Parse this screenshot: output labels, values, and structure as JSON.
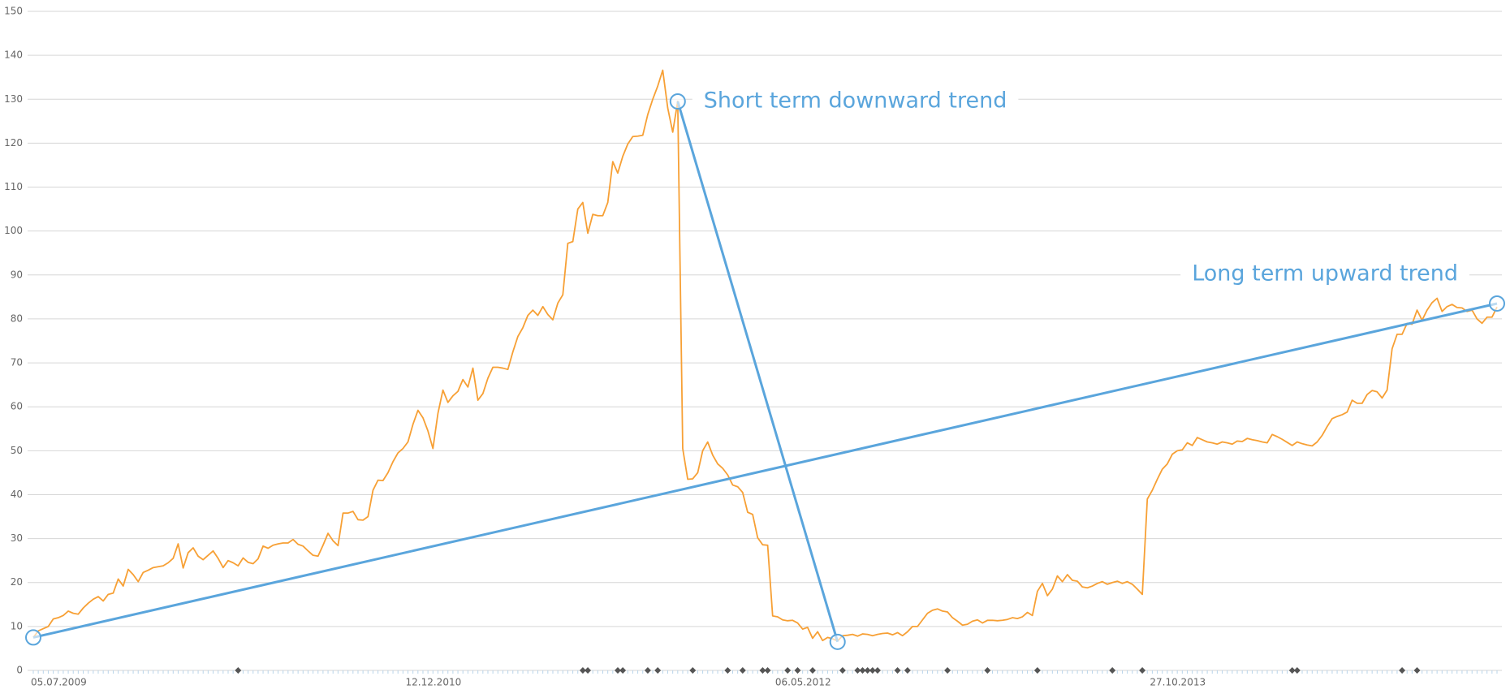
{
  "chart_data": {
    "type": "line",
    "categories": [
      "05.07.2009",
      null,
      null,
      null,
      null,
      null,
      null,
      null,
      null,
      null,
      null,
      null,
      null,
      null,
      null,
      null,
      null,
      null,
      null,
      null,
      null,
      null,
      null,
      null,
      null,
      null,
      null,
      null,
      null,
      null,
      null,
      null,
      null,
      null,
      null,
      null,
      null,
      null,
      null,
      null,
      null,
      null,
      null,
      null,
      null,
      null,
      null,
      null,
      null,
      null,
      null,
      null,
      null,
      null,
      null,
      null,
      null,
      null,
      null,
      null,
      null,
      null,
      null,
      null,
      null,
      null,
      null,
      null,
      null,
      null,
      null,
      null,
      null,
      null,
      null,
      "12.12.2010",
      null,
      null,
      null,
      null,
      null,
      null,
      null,
      null,
      null,
      null,
      null,
      null,
      null,
      null,
      null,
      null,
      null,
      null,
      null,
      null,
      null,
      null,
      null,
      null,
      null,
      null,
      null,
      null,
      null,
      null,
      null,
      null,
      null,
      null,
      null,
      null,
      null,
      null,
      null,
      null,
      null,
      null,
      null,
      null,
      null,
      null,
      null,
      null,
      null,
      null,
      null,
      null,
      null,
      null,
      null,
      null,
      null,
      null,
      null,
      null,
      null,
      null,
      null,
      null,
      null,
      null,
      null,
      null,
      null,
      null,
      null,
      null,
      null,
      "06.05.2012",
      null,
      null,
      null,
      null,
      null,
      null,
      null,
      null,
      null,
      null,
      null,
      null,
      null,
      null,
      null,
      null,
      null,
      null,
      null,
      null,
      null,
      null,
      null,
      null,
      null,
      null,
      null,
      null,
      null,
      null,
      null,
      null,
      null,
      null,
      null,
      null,
      null,
      null,
      null,
      null,
      null,
      null,
      null,
      null,
      null,
      null,
      null,
      null,
      null,
      null,
      null,
      null,
      null,
      null,
      null,
      null,
      null,
      null,
      null,
      null,
      null,
      null,
      null,
      null,
      null,
      null,
      null,
      null,
      null,
      null,
      null,
      null,
      null,
      null,
      "27.10.2013",
      null,
      null,
      null,
      null,
      null,
      null,
      null,
      null,
      null,
      null,
      null,
      null,
      null,
      null,
      null,
      null,
      null,
      null,
      null,
      null,
      null,
      null,
      null,
      null,
      null,
      null,
      null,
      null,
      null,
      null,
      null,
      null,
      null,
      null,
      null,
      null,
      null,
      null,
      null,
      null,
      null,
      null,
      null,
      null,
      null,
      null,
      null,
      null,
      null,
      null,
      null,
      null,
      null,
      null,
      null,
      null,
      null,
      null,
      null,
      null,
      null,
      null,
      null,
      null,
      null,
      null,
      null,
      null,
      null
    ],
    "series": [
      {
        "color": "#f7a035",
        "values": [
          7.5,
          9,
          9.5,
          10,
          11.7,
          12,
          12.5,
          13.5,
          13,
          12.8,
          14.2,
          15.3,
          16.2,
          16.8,
          15.8,
          17.3,
          17.6,
          20.8,
          19.2,
          23,
          21.8,
          20.2,
          22.3,
          22.8,
          23.4,
          23.6,
          23.8,
          24.5,
          25.5,
          28.8,
          23.3,
          26.8,
          27.9,
          26,
          25.2,
          26.2,
          27.2,
          25.5,
          23.4,
          25,
          24.5,
          23.8,
          25.6,
          24.6,
          24.3,
          25.4,
          28.3,
          27.8,
          28.5,
          28.8,
          29,
          29,
          29.8,
          28.7,
          28.3,
          27.2,
          26.2,
          26,
          28.5,
          31.2,
          29.5,
          28.4,
          35.8,
          35.8,
          36.2,
          34.3,
          34.2,
          35,
          41,
          43.3,
          43.2,
          45,
          47.5,
          49.5,
          50.5,
          52,
          56,
          59.2,
          57.5,
          54.5,
          50.5,
          58.5,
          63.8,
          61,
          62.5,
          63.5,
          66.2,
          64.5,
          68.8,
          61.5,
          63,
          66.5,
          69,
          69,
          68.8,
          68.5,
          72.5,
          76,
          78,
          80.8,
          82,
          80.8,
          82.8,
          81,
          79.8,
          83.6,
          85.5,
          97.2,
          97.6,
          105,
          106.5,
          99.5,
          103.8,
          103.5,
          103.5,
          106.5,
          115.8,
          113.2,
          117,
          119.8,
          121.5,
          121.6,
          121.8,
          126.5,
          130,
          133,
          136.6,
          128,
          122.5,
          129.5,
          50.5,
          43.5,
          43.6,
          45,
          50,
          52,
          49,
          47,
          46,
          44.5,
          42.2,
          41.8,
          40.5,
          36,
          35.5,
          30.2,
          28.6,
          28.5,
          12.4,
          12.2,
          11.5,
          11.3,
          11.4,
          10.8,
          9.4,
          9.8,
          7.3,
          8.8,
          6.8,
          7.5,
          7.2,
          6.7,
          7.9,
          8,
          8.2,
          7.8,
          8.3,
          8.2,
          7.9,
          8.2,
          8.4,
          8.5,
          8.1,
          8.6,
          7.9,
          8.8,
          10,
          10,
          11.5,
          13,
          13.7,
          14,
          13.5,
          13.3,
          12,
          11.2,
          10.3,
          10.5,
          11.2,
          11.5,
          10.8,
          11.4,
          11.4,
          11.3,
          11.4,
          11.6,
          12,
          11.8,
          12.2,
          13.2,
          12.5,
          18,
          19.8,
          17,
          18.5,
          21.5,
          20.2,
          21.8,
          20.5,
          20.3,
          19,
          18.8,
          19.2,
          19.8,
          20.2,
          19.6,
          20,
          20.3,
          19.8,
          20.2,
          19.6,
          18.5,
          17.3,
          39,
          41,
          43.5,
          45.8,
          47,
          49.2,
          50,
          50.2,
          51.8,
          51.2,
          53,
          52.5,
          52,
          51.8,
          51.5,
          52,
          51.8,
          51.5,
          52.2,
          52.1,
          52.8,
          52.5,
          52.3,
          52,
          51.8,
          53.7,
          53.2,
          52.6,
          51.9,
          51.2,
          52,
          51.6,
          51.3,
          51.1,
          52,
          53.5,
          55.5,
          57.3,
          57.8,
          58.2,
          58.8,
          61.5,
          60.8,
          60.8,
          62.8,
          63.7,
          63.4,
          62,
          63.8,
          73.2,
          76.5,
          76.5,
          79,
          78.8,
          82,
          79.7,
          82,
          83.7,
          84.7,
          81.7,
          82.8,
          83.3,
          82.6,
          82.5,
          81.7,
          82,
          80,
          79,
          80.4,
          80.4,
          82.7
        ]
      }
    ],
    "ylim": [
      0,
      150
    ],
    "yticks": [
      0,
      10,
      20,
      30,
      40,
      50,
      60,
      70,
      80,
      90,
      100,
      110,
      120,
      130,
      140,
      150
    ],
    "grid": true,
    "events": [
      41,
      110,
      111,
      117,
      118,
      123,
      125,
      132,
      139,
      142,
      146,
      147,
      151,
      153,
      156,
      162,
      165,
      166,
      167,
      168,
      169,
      173,
      175,
      183,
      191,
      201,
      216,
      222,
      252,
      253,
      274,
      277
    ],
    "event_color": "#555555",
    "annotations": [
      {
        "text": "Short term downward trend",
        "color": "#5aa5dc",
        "points": [
          [
            129,
            129.5
          ],
          [
            161,
            6.5
          ]
        ]
      },
      {
        "text": "Long term upward trend",
        "color": "#5aa5dc",
        "points": [
          [
            0,
            7.5
          ],
          [
            293,
            83.5
          ]
        ]
      }
    ]
  }
}
